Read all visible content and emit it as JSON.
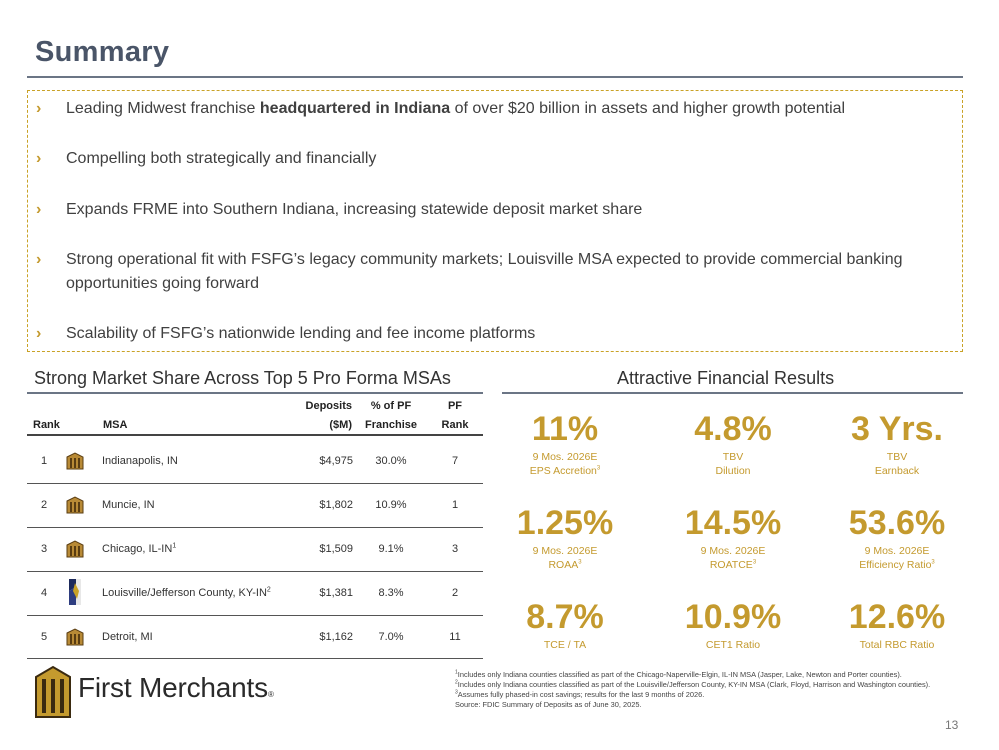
{
  "title": "Summary",
  "bullets": [
    {
      "pre": "Leading Midwest franchise ",
      "bold": "headquartered in Indiana",
      "post": " of over $20 billion in assets and higher growth potential"
    },
    {
      "pre": "Compelling both strategically and financially",
      "bold": "",
      "post": ""
    },
    {
      "pre": "Expands FRME into Southern Indiana, increasing statewide deposit market share",
      "bold": "",
      "post": ""
    },
    {
      "pre": "Strong operational fit with FSFG’s legacy community markets; Louisville MSA expected to provide commercial banking opportunities going forward",
      "bold": "",
      "post": ""
    },
    {
      "pre": "Scalability of FSFG’s nationwide lending and fee income platforms",
      "bold": "",
      "post": ""
    }
  ],
  "chevron": "›",
  "market_share": {
    "heading": "Strong Market Share Across Top 5 Pro Forma MSAs",
    "headers": {
      "rank": "Rank",
      "msa": "MSA",
      "deposits_1": "Deposits",
      "deposits_2": "($M)",
      "pct_1": "% of PF",
      "pct_2": "Franchise",
      "pf_1": "PF",
      "pf_2": "Rank"
    },
    "rows": [
      {
        "rank": "1",
        "msa": "Indianapolis, IN",
        "sup": "",
        "deposits": "$4,975",
        "pct": "30.0%",
        "pf_rank": "7",
        "icon": "first-merchants-building-icon"
      },
      {
        "rank": "2",
        "msa": "Muncie, IN",
        "sup": "",
        "deposits": "$1,802",
        "pct": "10.9%",
        "pf_rank": "1",
        "icon": "first-merchants-building-icon"
      },
      {
        "rank": "3",
        "msa": "Chicago, IL-IN",
        "sup": "1",
        "deposits": "$1,509",
        "pct": "9.1%",
        "pf_rank": "3",
        "icon": "first-merchants-building-icon"
      },
      {
        "rank": "4",
        "msa": "Louisville/Jefferson County, KY-IN",
        "sup": "2",
        "deposits": "$1,381",
        "pct": "8.3%",
        "pf_rank": "2",
        "icon": "first-savings-logo-icon"
      },
      {
        "rank": "5",
        "msa": "Detroit, MI",
        "sup": "",
        "deposits": "$1,162",
        "pct": "7.0%",
        "pf_rank": "11",
        "icon": "first-merchants-building-icon"
      }
    ]
  },
  "financial": {
    "heading": "Attractive Financial Results",
    "metrics": [
      {
        "value": "11%",
        "line1": "9 Mos. 2026E",
        "line2": "EPS Accretion",
        "sup": "3"
      },
      {
        "value": "4.8%",
        "line1": "TBV",
        "line2": "Dilution",
        "sup": ""
      },
      {
        "value": "3 Yrs.",
        "line1": "TBV",
        "line2": "Earnback",
        "sup": ""
      },
      {
        "value": "1.25%",
        "line1": "9 Mos. 2026E",
        "line2": "ROAA",
        "sup": "3"
      },
      {
        "value": "14.5%",
        "line1": "9 Mos. 2026E",
        "line2": "ROATCE",
        "sup": "3"
      },
      {
        "value": "53.6%",
        "line1": "9 Mos. 2026E",
        "line2": "Efficiency Ratio",
        "sup": "3"
      },
      {
        "value": "8.7%",
        "line1": "TCE / TA",
        "line2": "",
        "sup": ""
      },
      {
        "value": "10.9%",
        "line1": "CET1 Ratio",
        "line2": "",
        "sup": ""
      },
      {
        "value": "12.6%",
        "line1": "Total RBC Ratio",
        "line2": "",
        "sup": ""
      }
    ]
  },
  "logo": {
    "text": "First Merchants",
    "mark": "®"
  },
  "footnotes": [
    {
      "sup": "1",
      "text": "Includes only Indiana counties classified as part of the Chicago-Naperville-Elgin, IL-IN MSA (Jasper, Lake, Newton and Porter counties)."
    },
    {
      "sup": "2",
      "text": "Includes only Indiana counties classified as part of the Louisville/Jefferson County, KY-IN MSA (Clark, Floyd, Harrison and Washington counties)."
    },
    {
      "sup": "3",
      "text": "Assumes fully phased-in cost savings; results for the last 9 months of 2026."
    },
    {
      "sup": "",
      "text": "Source: FDIC Summary of Deposits as of June 30, 2025."
    }
  ],
  "page_number": "13",
  "colors": {
    "gold": "#c49a2e",
    "slate": "#4a5568"
  }
}
